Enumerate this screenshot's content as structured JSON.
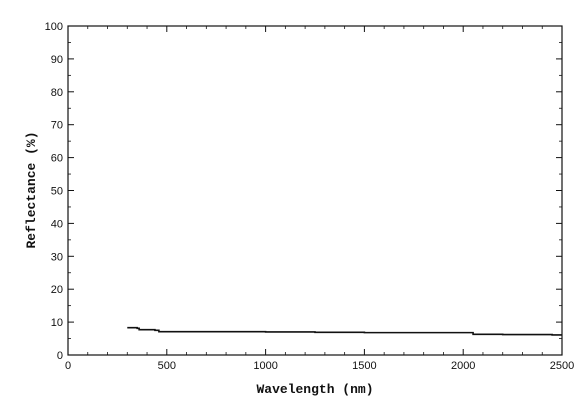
{
  "chart_data": {
    "type": "line",
    "title": "",
    "xlabel": "Wavelength (nm)",
    "ylabel": "Reflectance (%)",
    "xlim": [
      0,
      2500
    ],
    "ylim": [
      0,
      100
    ],
    "x_ticks": [
      0,
      500,
      1000,
      1500,
      2000,
      2500
    ],
    "y_ticks": [
      0,
      10,
      20,
      30,
      40,
      50,
      60,
      70,
      80,
      90,
      100
    ],
    "grid": false,
    "legend": "none",
    "line_color": "#111111",
    "series": [
      {
        "x": [
          300,
          350,
          360,
          440,
          460,
          1000,
          1250,
          1500,
          2000,
          2050,
          2200,
          2450,
          2500
        ],
        "y": [
          8.3,
          8.1,
          7.7,
          7.5,
          7.1,
          7.0,
          6.9,
          6.8,
          6.8,
          6.3,
          6.2,
          6.1,
          6.1
        ]
      }
    ]
  }
}
